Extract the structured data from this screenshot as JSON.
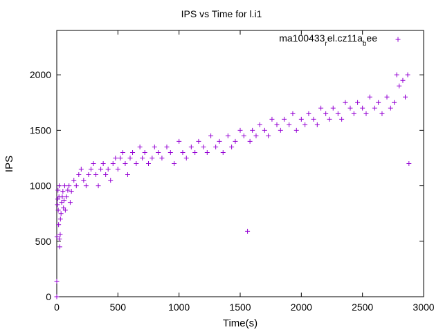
{
  "chart_data": {
    "type": "scatter",
    "title": "IPS vs Time for l.i1",
    "xlabel": "Time(s)",
    "ylabel": "IPS",
    "xlim": [
      0,
      3000
    ],
    "ylim": [
      0,
      2400
    ],
    "xticks": [
      0,
      500,
      1000,
      1500,
      2000,
      2500,
      3000
    ],
    "yticks": [
      0,
      500,
      1000,
      1500,
      2000
    ],
    "grid": false,
    "legend_position": "top-right",
    "series": [
      {
        "legend_parts": [
          "ma100433",
          "r",
          "el.cz11a",
          "b",
          "ee"
        ],
        "color": "#9400d3",
        "marker": "plus",
        "points": [
          [
            0,
            0
          ],
          [
            0,
            140
          ],
          [
            2,
            540
          ],
          [
            5,
            830
          ],
          [
            8,
            880
          ],
          [
            10,
            960
          ],
          [
            12,
            780
          ],
          [
            15,
            650
          ],
          [
            18,
            900
          ],
          [
            20,
            1000
          ],
          [
            22,
            520
          ],
          [
            25,
            450
          ],
          [
            28,
            560
          ],
          [
            30,
            700
          ],
          [
            35,
            750
          ],
          [
            40,
            850
          ],
          [
            45,
            900
          ],
          [
            50,
            950
          ],
          [
            55,
            800
          ],
          [
            60,
            870
          ],
          [
            65,
            1000
          ],
          [
            70,
            780
          ],
          [
            80,
            900
          ],
          [
            90,
            960
          ],
          [
            100,
            1000
          ],
          [
            110,
            850
          ],
          [
            120,
            950
          ],
          [
            140,
            1050
          ],
          [
            160,
            1000
          ],
          [
            180,
            1100
          ],
          [
            200,
            1150
          ],
          [
            220,
            1050
          ],
          [
            240,
            1000
          ],
          [
            260,
            1100
          ],
          [
            280,
            1150
          ],
          [
            300,
            1200
          ],
          [
            320,
            1100
          ],
          [
            340,
            1000
          ],
          [
            360,
            1150
          ],
          [
            380,
            1200
          ],
          [
            400,
            1100
          ],
          [
            420,
            1150
          ],
          [
            440,
            1050
          ],
          [
            460,
            1200
          ],
          [
            480,
            1250
          ],
          [
            500,
            1150
          ],
          [
            520,
            1250
          ],
          [
            540,
            1300
          ],
          [
            560,
            1200
          ],
          [
            580,
            1100
          ],
          [
            600,
            1250
          ],
          [
            620,
            1300
          ],
          [
            650,
            1200
          ],
          [
            680,
            1350
          ],
          [
            700,
            1250
          ],
          [
            720,
            1300
          ],
          [
            750,
            1200
          ],
          [
            780,
            1250
          ],
          [
            800,
            1350
          ],
          [
            830,
            1300
          ],
          [
            860,
            1250
          ],
          [
            900,
            1350
          ],
          [
            930,
            1300
          ],
          [
            960,
            1200
          ],
          [
            1000,
            1400
          ],
          [
            1030,
            1300
          ],
          [
            1060,
            1250
          ],
          [
            1100,
            1350
          ],
          [
            1130,
            1300
          ],
          [
            1160,
            1400
          ],
          [
            1200,
            1350
          ],
          [
            1230,
            1300
          ],
          [
            1260,
            1450
          ],
          [
            1300,
            1350
          ],
          [
            1330,
            1400
          ],
          [
            1360,
            1300
          ],
          [
            1400,
            1450
          ],
          [
            1430,
            1350
          ],
          [
            1460,
            1400
          ],
          [
            1500,
            1500
          ],
          [
            1530,
            1450
          ],
          [
            1560,
            590
          ],
          [
            1580,
            1400
          ],
          [
            1600,
            1500
          ],
          [
            1630,
            1450
          ],
          [
            1660,
            1550
          ],
          [
            1700,
            1500
          ],
          [
            1730,
            1450
          ],
          [
            1760,
            1600
          ],
          [
            1800,
            1550
          ],
          [
            1830,
            1500
          ],
          [
            1860,
            1600
          ],
          [
            1900,
            1550
          ],
          [
            1930,
            1650
          ],
          [
            1960,
            1500
          ],
          [
            2000,
            1600
          ],
          [
            2030,
            1550
          ],
          [
            2060,
            1650
          ],
          [
            2100,
            1600
          ],
          [
            2130,
            1550
          ],
          [
            2160,
            1700
          ],
          [
            2200,
            1650
          ],
          [
            2230,
            1600
          ],
          [
            2260,
            1700
          ],
          [
            2300,
            1650
          ],
          [
            2330,
            1600
          ],
          [
            2360,
            1750
          ],
          [
            2400,
            1700
          ],
          [
            2430,
            1650
          ],
          [
            2460,
            1750
          ],
          [
            2500,
            1700
          ],
          [
            2530,
            1650
          ],
          [
            2560,
            1800
          ],
          [
            2600,
            1700
          ],
          [
            2630,
            1750
          ],
          [
            2660,
            1650
          ],
          [
            2700,
            1800
          ],
          [
            2730,
            1700
          ],
          [
            2760,
            1750
          ],
          [
            2780,
            2000
          ],
          [
            2800,
            1900
          ],
          [
            2830,
            1950
          ],
          [
            2850,
            1800
          ],
          [
            2870,
            2000
          ],
          [
            2880,
            1200
          ]
        ]
      }
    ]
  }
}
